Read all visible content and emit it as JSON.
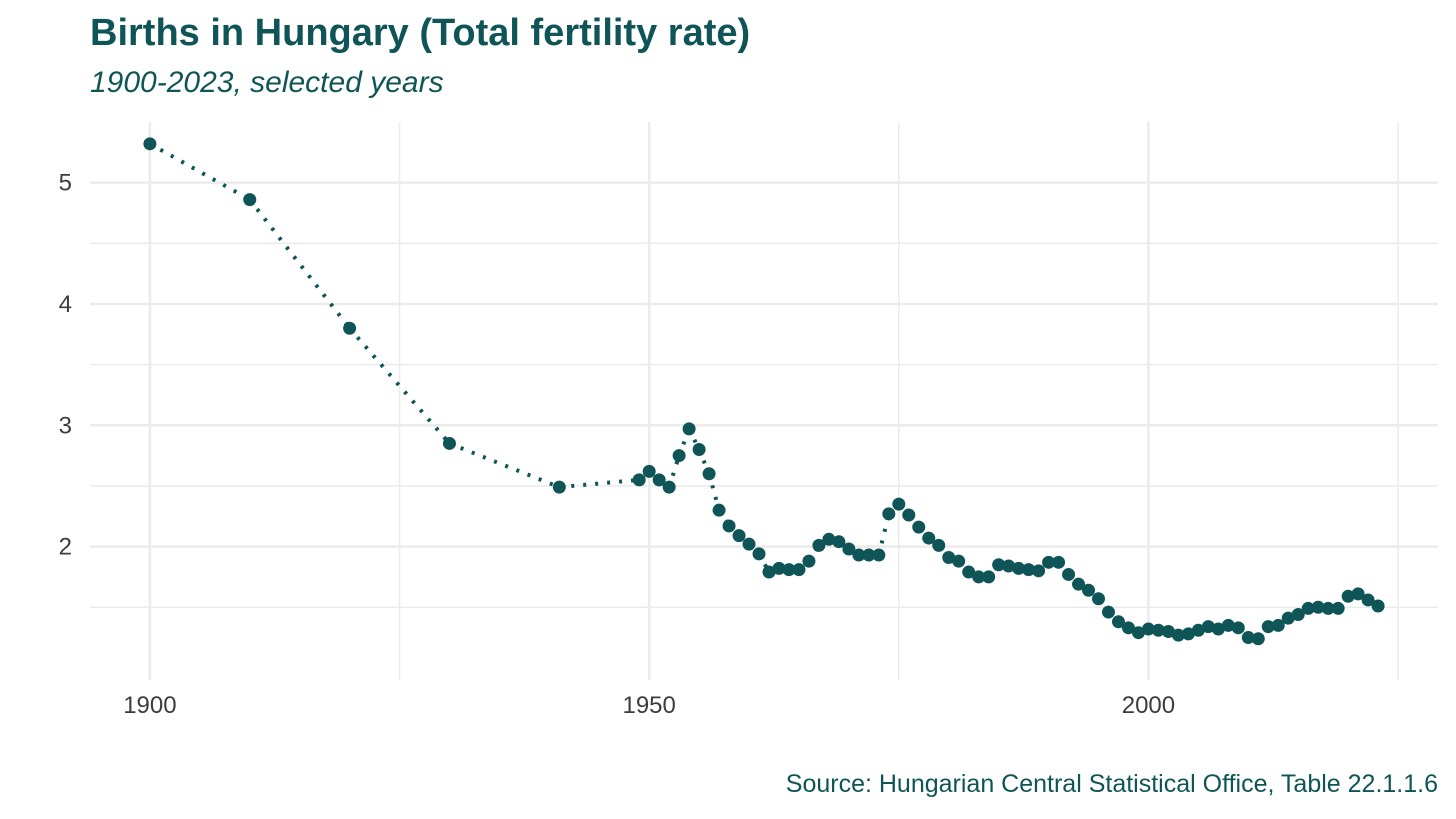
{
  "header": {
    "title": "Births in Hungary (Total fertility rate)",
    "subtitle": "1900-2023, selected years"
  },
  "footer": {
    "source": "Source: Hungarian Central Statistical Office, Table 22.1.1.6"
  },
  "colors": {
    "series": "#0f5557",
    "grid": "#ebebeb",
    "text": "#0f5557",
    "tick_text": "#3d3d3d"
  },
  "chart_data": {
    "type": "line",
    "title": "Births in Hungary (Total fertility rate)",
    "subtitle": "1900-2023, selected years",
    "xlabel": "",
    "ylabel": "",
    "xlim": [
      1894,
      2029
    ],
    "ylim": [
      0.9,
      5.5
    ],
    "xticks": [
      1900,
      1950,
      2000
    ],
    "yticks": [
      2,
      3,
      4,
      5
    ],
    "x_minor_gridlines": [
      1925,
      1975,
      2025
    ],
    "y_minor_gridlines": [
      1.5,
      2.5,
      3.5,
      4.5
    ],
    "grid": true,
    "legend": "none",
    "line_style": "dotted",
    "marker": "circle",
    "series": [
      {
        "x": [
          1900,
          1910,
          1920,
          1930,
          1941,
          1949,
          1950,
          1951,
          1952,
          1953,
          1954,
          1955,
          1956,
          1957,
          1958,
          1959,
          1960,
          1961,
          1962,
          1963,
          1964,
          1965,
          1966,
          1967,
          1968,
          1969,
          1970,
          1971,
          1972,
          1973,
          1974,
          1975,
          1976,
          1977,
          1978,
          1979,
          1980,
          1981,
          1982,
          1983,
          1984,
          1985,
          1986,
          1987,
          1988,
          1989,
          1990,
          1991,
          1992,
          1993,
          1994,
          1995,
          1996,
          1997,
          1998,
          1999,
          2000,
          2001,
          2002,
          2003,
          2004,
          2005,
          2006,
          2007,
          2008,
          2009,
          2010,
          2011,
          2012,
          2013,
          2014,
          2015,
          2016,
          2017,
          2018,
          2019,
          2020,
          2021,
          2022,
          2023
        ],
        "values": [
          5.32,
          4.86,
          3.8,
          2.85,
          2.49,
          2.55,
          2.62,
          2.55,
          2.49,
          2.75,
          2.97,
          2.8,
          2.6,
          2.3,
          2.17,
          2.09,
          2.02,
          1.94,
          1.79,
          1.82,
          1.81,
          1.81,
          1.88,
          2.01,
          2.06,
          2.04,
          1.98,
          1.93,
          1.93,
          1.93,
          2.27,
          2.35,
          2.26,
          2.16,
          2.07,
          2.01,
          1.91,
          1.88,
          1.79,
          1.75,
          1.75,
          1.85,
          1.84,
          1.82,
          1.81,
          1.8,
          1.87,
          1.87,
          1.77,
          1.69,
          1.64,
          1.57,
          1.46,
          1.38,
          1.33,
          1.29,
          1.32,
          1.31,
          1.3,
          1.27,
          1.28,
          1.31,
          1.34,
          1.32,
          1.35,
          1.33,
          1.25,
          1.24,
          1.34,
          1.35,
          1.41,
          1.44,
          1.49,
          1.5,
          1.49,
          1.49,
          1.59,
          1.61,
          1.56,
          1.51
        ]
      }
    ]
  }
}
